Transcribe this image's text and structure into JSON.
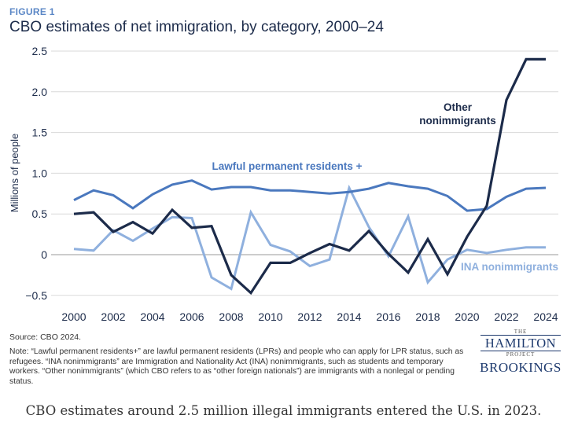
{
  "figure": {
    "label": "FIGURE 1",
    "title": "CBO estimates of net immigration, by category, 2000–24",
    "source": "Source: CBO 2024.",
    "note": "Note: “Lawful permanent residents+” are lawful permanent residents (LPRs) and people who can apply for LPR status, such as refugees. “INA nonimmigrants” are Immigration and Nationality Act (INA) nonimmigrants, such as students and temporary workers. “Other nonimmigrants” (which CBO refers to as “other foreign nationals”) are immigrants with a nonlegal or pending status.",
    "caption": "CBO estimates around 2.5 million illegal immigrants entered the U.S. in 2023."
  },
  "logos": {
    "hp_the": "THE",
    "hp_name": "HAMILTON",
    "hp_project": "PROJECT",
    "brookings": "BROOKINGS"
  },
  "chart_data": {
    "type": "line",
    "title": "CBO estimates of net immigration, by category, 2000–24",
    "xlabel": "",
    "ylabel": "Millions of people",
    "xlim": [
      1999.5,
      2024.3
    ],
    "ylim": [
      -0.6,
      2.5
    ],
    "x_ticks": [
      2000,
      2002,
      2004,
      2006,
      2008,
      2010,
      2012,
      2014,
      2016,
      2018,
      2020,
      2022,
      2024
    ],
    "y_ticks": [
      -0.5,
      0,
      0.5,
      1.0,
      1.5,
      2.0,
      2.5
    ],
    "y_tick_labels": [
      "−0.5",
      "0",
      "0.5",
      "1.0",
      "1.5",
      "2.0",
      "2.5"
    ],
    "grid": "horizontal",
    "x": [
      2000,
      2001,
      2002,
      2003,
      2004,
      2005,
      2006,
      2007,
      2008,
      2009,
      2010,
      2011,
      2012,
      2013,
      2014,
      2015,
      2016,
      2017,
      2018,
      2019,
      2020,
      2021,
      2022,
      2023,
      2024
    ],
    "series": [
      {
        "name": "Lawful permanent residents +",
        "color": "#4a78be",
        "values": [
          0.67,
          0.79,
          0.73,
          0.57,
          0.74,
          0.86,
          0.91,
          0.8,
          0.83,
          0.83,
          0.79,
          0.79,
          0.77,
          0.75,
          0.77,
          0.81,
          0.88,
          0.84,
          0.81,
          0.72,
          0.54,
          0.56,
          0.71,
          0.81,
          0.82
        ]
      },
      {
        "name": "INA nonimmigrants",
        "color": "#8fb0de",
        "values": [
          0.07,
          0.05,
          0.3,
          0.17,
          0.32,
          0.46,
          0.45,
          -0.28,
          -0.42,
          0.52,
          0.12,
          0.04,
          -0.14,
          -0.06,
          0.82,
          0.34,
          -0.02,
          0.47,
          -0.34,
          -0.06,
          0.06,
          0.02,
          0.06,
          0.09,
          0.09
        ]
      },
      {
        "name": "Other nonimmigrants",
        "color": "#1c2b4a",
        "values": [
          0.5,
          0.52,
          0.28,
          0.4,
          0.26,
          0.55,
          0.33,
          0.35,
          -0.25,
          -0.47,
          -0.1,
          -0.1,
          0.02,
          0.13,
          0.05,
          0.29,
          0.01,
          -0.22,
          0.19,
          -0.24,
          0.22,
          0.6,
          1.9,
          2.4,
          2.4
        ]
      }
    ],
    "annotations": [
      {
        "series": "Lawful permanent residents +",
        "text": "Lawful permanent residents +"
      },
      {
        "series": "INA nonimmigrants",
        "text": "INA nonimmigrants"
      },
      {
        "series": "Other nonimmigrants",
        "lines": [
          "Other",
          "nonimmigrants"
        ]
      }
    ]
  }
}
